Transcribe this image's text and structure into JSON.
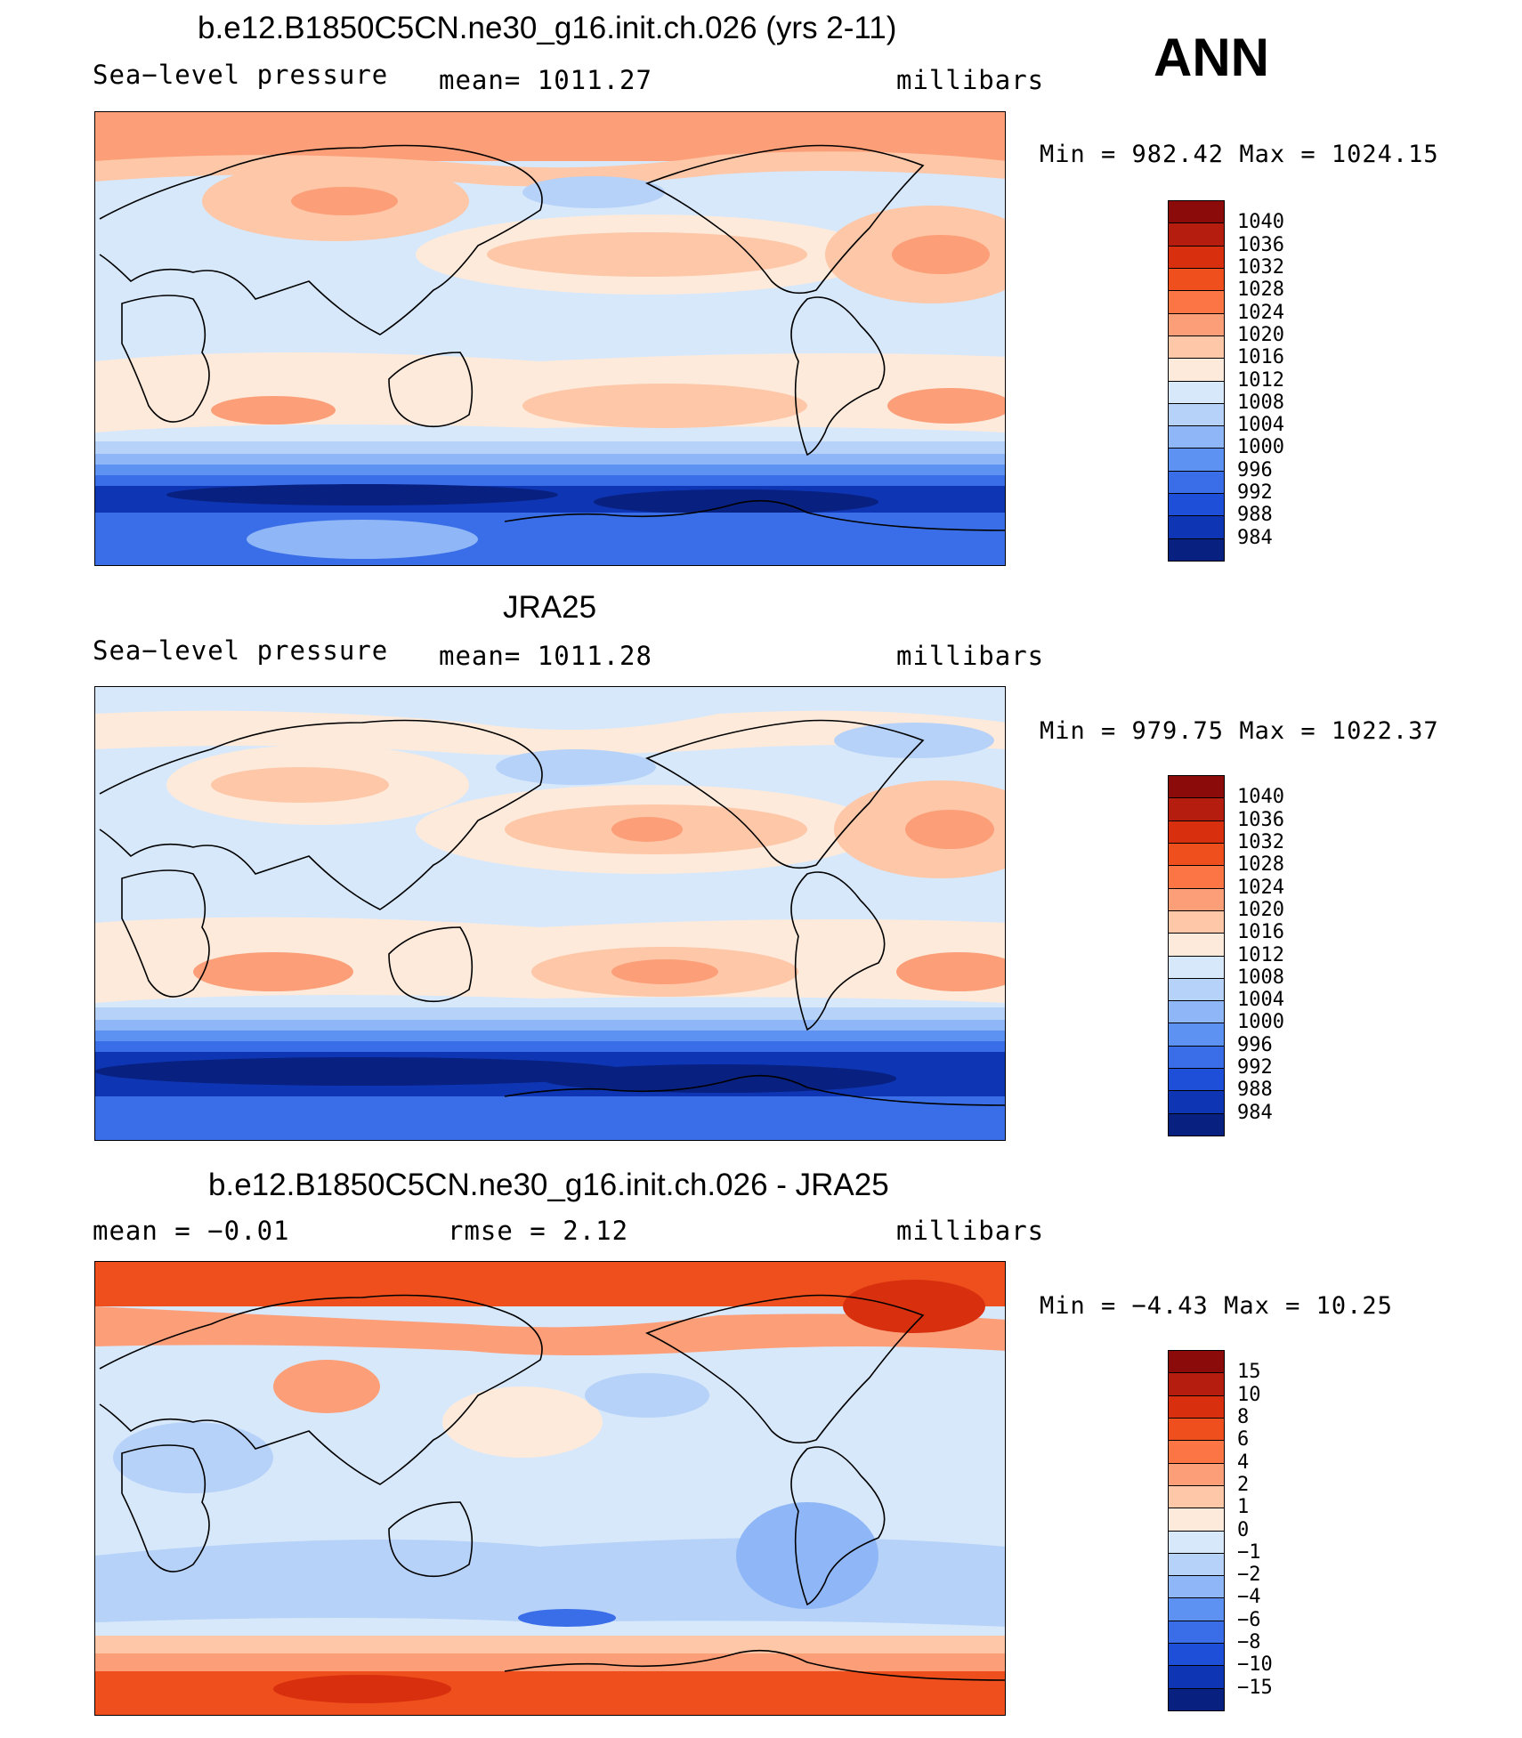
{
  "header": {
    "season": "ANN"
  },
  "panels": [
    {
      "title": "b.e12.B1850C5CN.ne30_g16.init.ch.026 (yrs 2-11)",
      "left_label": "Sea−level pressure",
      "center_label": "mean=  1011.27",
      "right_label": "millibars",
      "minmax": "Min  =  982.42  Max  =  1024.15",
      "colorbar": {
        "labels": [
          "1040",
          "1036",
          "1032",
          "1028",
          "1024",
          "1020",
          "1016",
          "1012",
          "1008",
          "1004",
          "1000",
          "996",
          "992",
          "988",
          "984"
        ],
        "colors": [
          "#8b0a0a",
          "#b51e0e",
          "#d8300f",
          "#ef4f1c",
          "#fb7644",
          "#fc9e78",
          "#fdc7a8",
          "#fdeadb",
          "#d7e8fb",
          "#b6d2f8",
          "#8fb6f6",
          "#5d92f2",
          "#3a6ee8",
          "#1d4fd8",
          "#0e35b3",
          "#08207f"
        ]
      },
      "fields": {
        "base": "#d7e8fb",
        "polar_north": "#fdc7a8",
        "subtropical_high": "#fdc7a8",
        "storm_track": "#1d4fd8"
      }
    },
    {
      "title": "JRA25",
      "left_label": "Sea−level pressure",
      "center_label": "mean=  1011.28",
      "right_label": "millibars",
      "minmax": "Min  =  979.75  Max  =  1022.37",
      "colorbar": {
        "labels": [
          "1040",
          "1036",
          "1032",
          "1028",
          "1024",
          "1020",
          "1016",
          "1012",
          "1008",
          "1004",
          "1000",
          "996",
          "992",
          "988",
          "984"
        ],
        "colors": [
          "#8b0a0a",
          "#b51e0e",
          "#d8300f",
          "#ef4f1c",
          "#fb7644",
          "#fc9e78",
          "#fdc7a8",
          "#fdeadb",
          "#d7e8fb",
          "#b6d2f8",
          "#8fb6f6",
          "#5d92f2",
          "#3a6ee8",
          "#1d4fd8",
          "#0e35b3",
          "#08207f"
        ]
      },
      "fields": {
        "base": "#d7e8fb",
        "polar_north": "#fdeadb",
        "subtropical_high": "#fdc7a8",
        "storm_track": "#0e35b3"
      }
    },
    {
      "title": "b.e12.B1850C5CN.ne30_g16.init.ch.026 - JRA25",
      "left_label": "mean  =    −0.01",
      "center_label": "rmse  =     2.12",
      "right_label": "millibars",
      "minmax": "Min  =   −4.43  Max  =    10.25",
      "colorbar": {
        "labels": [
          "15",
          "10",
          "8",
          "6",
          "4",
          "2",
          "1",
          "0",
          "−1",
          "−2",
          "−4",
          "−6",
          "−8",
          "−10",
          "−15"
        ],
        "colors": [
          "#8b0a0a",
          "#b51e0e",
          "#d8300f",
          "#ef4f1c",
          "#fb7644",
          "#fc9e78",
          "#fdc7a8",
          "#fdeadb",
          "#d7e8fb",
          "#b6d2f8",
          "#8fb6f6",
          "#5d92f2",
          "#3a6ee8",
          "#1d4fd8",
          "#0e35b3",
          "#08207f"
        ]
      },
      "fields": {
        "base": "#d7e8fb",
        "polar_north": "#ef4f1c",
        "subtropical_high": "#fdeadb",
        "storm_track": "#b6d2f8"
      }
    }
  ]
}
